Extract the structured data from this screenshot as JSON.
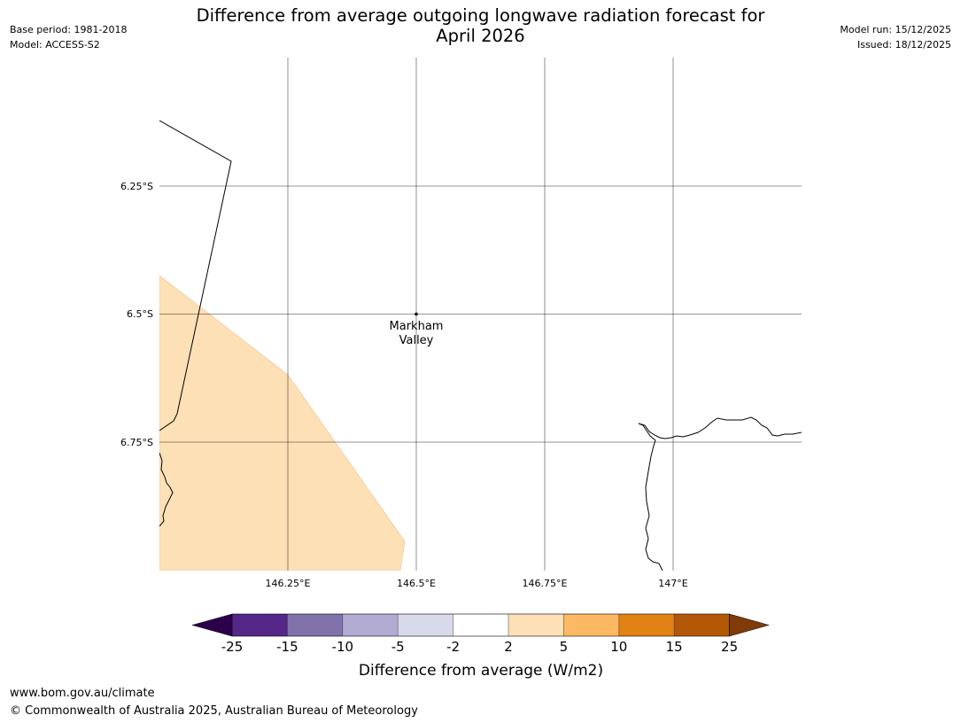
{
  "header": {
    "title_line1": "Difference from average outgoing longwave radiation forecast for",
    "title_line2": "April 2026",
    "base_period": "Base period: 1981-2018",
    "model": "Model: ACCESS-S2",
    "model_run": "Model run: 15/12/2025",
    "issued": "Issued: 18/12/2025"
  },
  "map": {
    "lon_ticks": [
      "146.25°E",
      "146.5°E",
      "146.75°E",
      "147°E"
    ],
    "lat_ticks": [
      "6.25°S",
      "6.5°S",
      "6.75°S"
    ],
    "place": {
      "name_line1": "Markham",
      "name_line2": "Valley",
      "lon": 146.5,
      "lat": -6.5
    },
    "anomaly_region_value": "2 to 5",
    "anomaly_region_color": "#fde0b6"
  },
  "colorbar": {
    "title": "Difference from average (W/m2)",
    "ticks": [
      "-25",
      "-15",
      "-10",
      "-5",
      "-2",
      "2",
      "5",
      "10",
      "15",
      "25"
    ],
    "colors": [
      "#542788",
      "#8073ac",
      "#b2abd2",
      "#d8daeb",
      "#ffffff",
      "#fee0b6",
      "#fdb863",
      "#e08214",
      "#b35806"
    ],
    "extend_low_color": "#2d004b",
    "extend_high_color": "#7f3b08"
  },
  "footer": {
    "url": "www.bom.gov.au/climate",
    "copyright": "© Commonwealth of Australia 2025, Australian Bureau of Meteorology"
  }
}
